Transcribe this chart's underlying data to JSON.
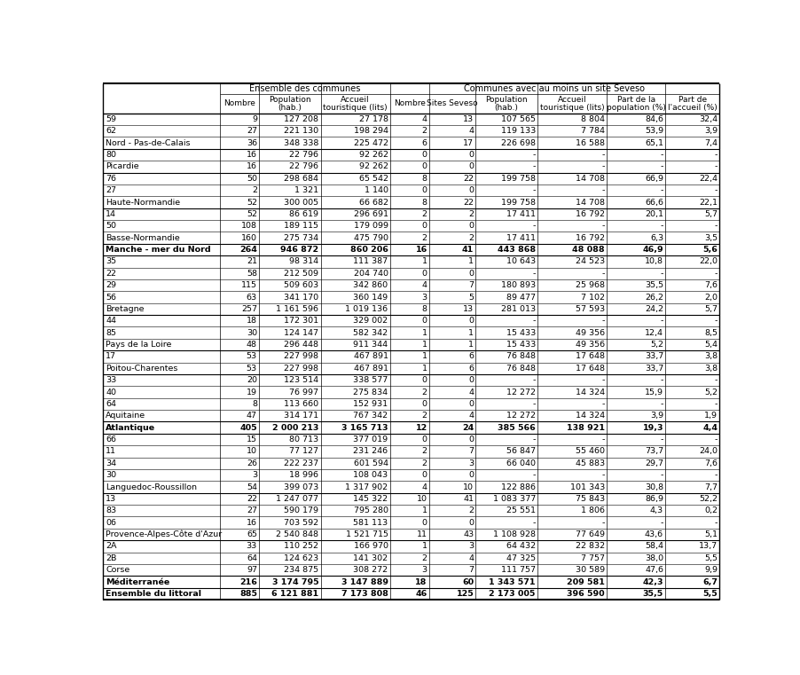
{
  "rows": [
    [
      "59",
      "9",
      "127 208",
      "27 178",
      "4",
      "13",
      "107 565",
      "8 804",
      "84,6",
      "32,4"
    ],
    [
      "62",
      "27",
      "221 130",
      "198 294",
      "2",
      "4",
      "119 133",
      "7 784",
      "53,9",
      "3,9"
    ],
    [
      "Nord - Pas-de-Calais",
      "36",
      "348 338",
      "225 472",
      "6",
      "17",
      "226 698",
      "16 588",
      "65,1",
      "7,4"
    ],
    [
      "80",
      "16",
      "22 796",
      "92 262",
      "0",
      "0",
      "-",
      "-",
      "-",
      "-"
    ],
    [
      "Picardie",
      "16",
      "22 796",
      "92 262",
      "0",
      "0",
      "-",
      "-",
      "-",
      "-"
    ],
    [
      "76",
      "50",
      "298 684",
      "65 542",
      "8",
      "22",
      "199 758",
      "14 708",
      "66,9",
      "22,4"
    ],
    [
      "27",
      "2",
      "1 321",
      "1 140",
      "0",
      "0",
      "-",
      "-",
      "-",
      "-"
    ],
    [
      "Haute-Normandie",
      "52",
      "300 005",
      "66 682",
      "8",
      "22",
      "199 758",
      "14 708",
      "66,6",
      "22,1"
    ],
    [
      "14",
      "52",
      "86 619",
      "296 691",
      "2",
      "2",
      "17 411",
      "16 792",
      "20,1",
      "5,7"
    ],
    [
      "50",
      "108",
      "189 115",
      "179 099",
      "0",
      "0",
      "-",
      "-",
      "-",
      "-"
    ],
    [
      "Basse-Normandie",
      "160",
      "275 734",
      "475 790",
      "2",
      "2",
      "17 411",
      "16 792",
      "6,3",
      "3,5"
    ],
    [
      "Manche - mer du Nord",
      "264",
      "946 872",
      "860 206",
      "16",
      "41",
      "443 868",
      "48 088",
      "46,9",
      "5,6"
    ],
    [
      "35",
      "21",
      "98 314",
      "111 387",
      "1",
      "1",
      "10 643",
      "24 523",
      "10,8",
      "22,0"
    ],
    [
      "22",
      "58",
      "212 509",
      "204 740",
      "0",
      "0",
      "-",
      "-",
      "-",
      "-"
    ],
    [
      "29",
      "115",
      "509 603",
      "342 860",
      "4",
      "7",
      "180 893",
      "25 968",
      "35,5",
      "7,6"
    ],
    [
      "56",
      "63",
      "341 170",
      "360 149",
      "3",
      "5",
      "89 477",
      "7 102",
      "26,2",
      "2,0"
    ],
    [
      "Bretagne",
      "257",
      "1 161 596",
      "1 019 136",
      "8",
      "13",
      "281 013",
      "57 593",
      "24,2",
      "5,7"
    ],
    [
      "44",
      "18",
      "172 301",
      "329 002",
      "0",
      "0",
      "-",
      "-",
      "-",
      "-"
    ],
    [
      "85",
      "30",
      "124 147",
      "582 342",
      "1",
      "1",
      "15 433",
      "49 356",
      "12,4",
      "8,5"
    ],
    [
      "Pays de la Loire",
      "48",
      "296 448",
      "911 344",
      "1",
      "1",
      "15 433",
      "49 356",
      "5,2",
      "5,4"
    ],
    [
      "17",
      "53",
      "227 998",
      "467 891",
      "1",
      "6",
      "76 848",
      "17 648",
      "33,7",
      "3,8"
    ],
    [
      "Poitou-Charentes",
      "53",
      "227 998",
      "467 891",
      "1",
      "6",
      "76 848",
      "17 648",
      "33,7",
      "3,8"
    ],
    [
      "33",
      "20",
      "123 514",
      "338 577",
      "0",
      "0",
      "-",
      "-",
      "-",
      "-"
    ],
    [
      "40",
      "19",
      "76 997",
      "275 834",
      "2",
      "4",
      "12 272",
      "14 324",
      "15,9",
      "5,2"
    ],
    [
      "64",
      "8",
      "113 660",
      "152 931",
      "0",
      "0",
      "-",
      "-",
      "-",
      "-"
    ],
    [
      "Aquitaine",
      "47",
      "314 171",
      "767 342",
      "2",
      "4",
      "12 272",
      "14 324",
      "3,9",
      "1,9"
    ],
    [
      "Atlantique",
      "405",
      "2 000 213",
      "3 165 713",
      "12",
      "24",
      "385 566",
      "138 921",
      "19,3",
      "4,4"
    ],
    [
      "66",
      "15",
      "80 713",
      "377 019",
      "0",
      "0",
      "-",
      "-",
      "-",
      "-"
    ],
    [
      "11",
      "10",
      "77 127",
      "231 246",
      "2",
      "7",
      "56 847",
      "55 460",
      "73,7",
      "24,0"
    ],
    [
      "34",
      "26",
      "222 237",
      "601 594",
      "2",
      "3",
      "66 040",
      "45 883",
      "29,7",
      "7,6"
    ],
    [
      "30",
      "3",
      "18 996",
      "108 043",
      "0",
      "0",
      "-",
      "-",
      "-",
      "-"
    ],
    [
      "Languedoc-Roussillon",
      "54",
      "399 073",
      "1 317 902",
      "4",
      "10",
      "122 886",
      "101 343",
      "30,8",
      "7,7"
    ],
    [
      "13",
      "22",
      "1 247 077",
      "145 322",
      "10",
      "41",
      "1 083 377",
      "75 843",
      "86,9",
      "52,2"
    ],
    [
      "83",
      "27",
      "590 179",
      "795 280",
      "1",
      "2",
      "25 551",
      "1 806",
      "4,3",
      "0,2"
    ],
    [
      "06",
      "16",
      "703 592",
      "581 113",
      "0",
      "0",
      "-",
      "-",
      "-",
      "-"
    ],
    [
      "Provence-Alpes-Côte d'Azur",
      "65",
      "2 540 848",
      "1 521 715",
      "11",
      "43",
      "1 108 928",
      "77 649",
      "43,6",
      "5,1"
    ],
    [
      "2A",
      "33",
      "110 252",
      "166 970",
      "1",
      "3",
      "64 432",
      "22 832",
      "58,4",
      "13,7"
    ],
    [
      "2B",
      "64",
      "124 623",
      "141 302",
      "2",
      "4",
      "47 325",
      "7 757",
      "38,0",
      "5,5"
    ],
    [
      "Corse",
      "97",
      "234 875",
      "308 272",
      "3",
      "7",
      "111 757",
      "30 589",
      "47,6",
      "9,9"
    ],
    [
      "Méditerranée",
      "216",
      "3 174 795",
      "3 147 889",
      "18",
      "60",
      "1 343 571",
      "209 581",
      "42,3",
      "6,7"
    ],
    [
      "Ensemble du littoral",
      "885",
      "6 121 881",
      "7 173 808",
      "46",
      "125",
      "2 173 005",
      "396 590",
      "35,5",
      "5,5"
    ]
  ],
  "bold_row_indices": [
    11,
    26,
    39,
    40
  ],
  "solid_line_rows": [
    2,
    4,
    7,
    10,
    11,
    16,
    19,
    21,
    25,
    26,
    31,
    35,
    38,
    39,
    40
  ],
  "col_widths_rel": [
    1.55,
    0.52,
    0.82,
    0.92,
    0.52,
    0.62,
    0.82,
    0.92,
    0.78,
    0.72
  ],
  "bg_color": "#ffffff",
  "header1_labels": [
    "Ensemble des communes",
    "Communes avec au moins un site Seveso"
  ],
  "header2_labels": [
    "",
    "Nombre",
    "Population\n(hab.)",
    "Accueil\ntouristique (lits)",
    "Nombre",
    "Sites Seveso",
    "Population\n(hab.)",
    "Accueil\ntouristique (lits)",
    "Part de la\npopulation (%)",
    "Part de\nl'accueil (%)"
  ],
  "fontsize_data": 6.8,
  "fontsize_header": 7.0,
  "fontsize_header2": 6.5
}
